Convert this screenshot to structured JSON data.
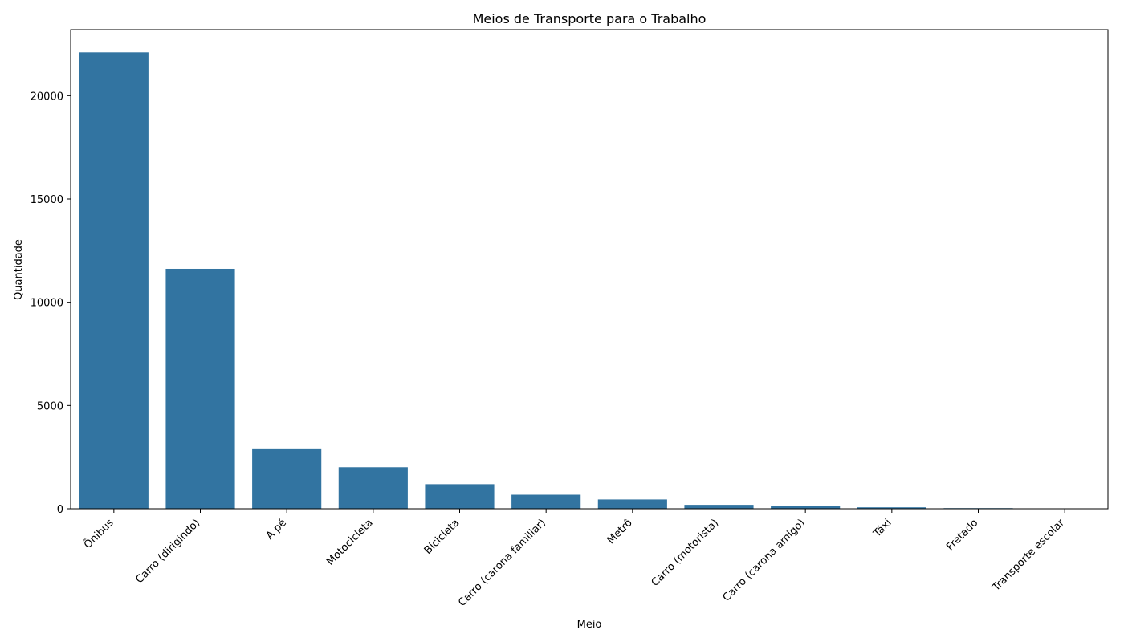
{
  "chart_data": {
    "type": "bar",
    "title": "Meios de Transporte para o Trabalho",
    "xlabel": "Meio",
    "ylabel": "Quantidade",
    "categories": [
      "Ônibus",
      "Carro (dirigindo)",
      "A pé",
      "Motocicleta",
      "Bicicleta",
      "Carro (carona familiar)",
      "Metrô",
      "Carro (motorista)",
      "Carro (carona amigo)",
      "Táxi",
      "Fretado",
      "Transporte escolar"
    ],
    "values": [
      22100,
      11620,
      2920,
      2010,
      1190,
      680,
      450,
      190,
      140,
      70,
      30,
      5
    ],
    "ylim": [
      0,
      23200
    ],
    "yticks": [
      0,
      5000,
      10000,
      15000,
      20000
    ],
    "grid": false,
    "bar_color": "#3274a1"
  }
}
